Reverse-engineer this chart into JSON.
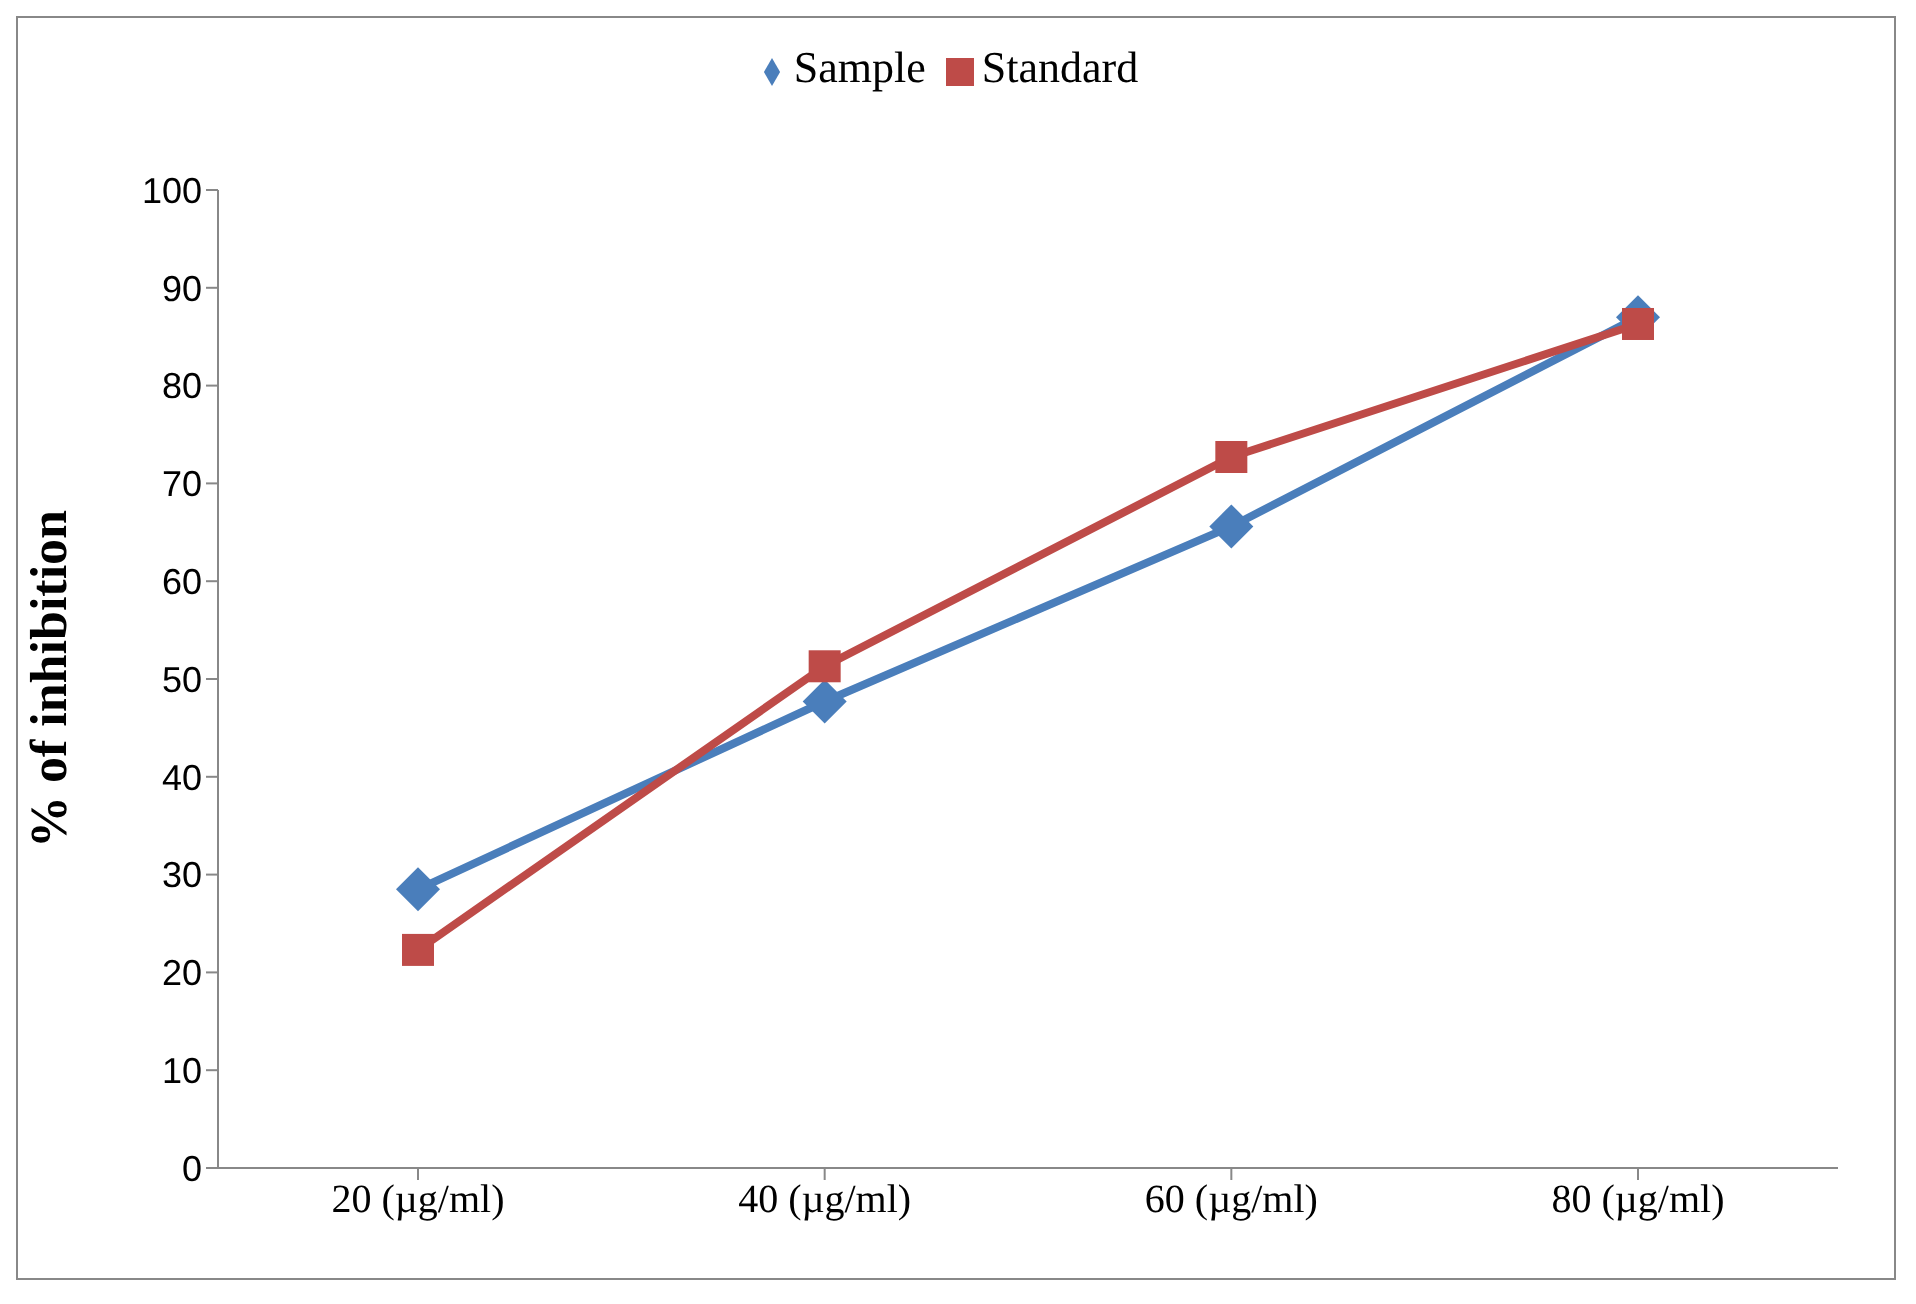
{
  "chart_data": {
    "type": "line",
    "ylabel": "% of inhibition",
    "categories": [
      "20 (µg/ml)",
      "40 (µg/ml)",
      "60 (µg/ml)",
      "80 (µg/ml)"
    ],
    "series": [
      {
        "name": "Sample",
        "color": "#4a7ebb",
        "marker": "diamond",
        "values": [
          28.5,
          47.7,
          65.6,
          87
        ]
      },
      {
        "name": "Standard",
        "color": "#be4b48",
        "marker": "square",
        "values": [
          22.3,
          51.3,
          72.7,
          86.3
        ]
      }
    ],
    "ylim": [
      0,
      100
    ],
    "yticks": [
      0,
      10,
      20,
      30,
      40,
      50,
      60,
      70,
      80,
      90,
      100
    ],
    "grid": false,
    "legend": "top"
  }
}
